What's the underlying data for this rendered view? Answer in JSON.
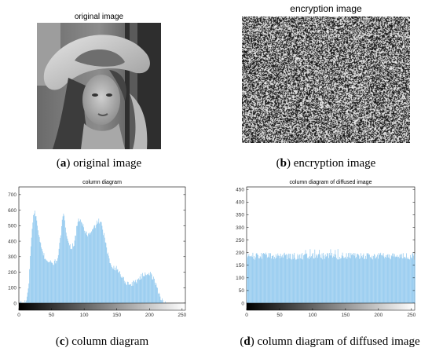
{
  "panels": {
    "a": {
      "title": "original image",
      "caption_letter": "a",
      "caption_text": "original image"
    },
    "b": {
      "title": "encryption image",
      "caption_letter": "b",
      "caption_text": "encryption image"
    },
    "c": {
      "caption_letter": "c",
      "caption_text": "column diagram"
    },
    "d": {
      "caption_letter": "d",
      "caption_text": "column diagram of diffused image"
    }
  },
  "colors": {
    "bar": "#8ec7ee",
    "axis": "#000000",
    "background": "#ffffff"
  },
  "chart_data": [
    {
      "id": "c",
      "type": "bar",
      "title": "column diagram",
      "xlabel": "",
      "ylabel": "",
      "xlim": [
        0,
        255
      ],
      "ylim": [
        0,
        750
      ],
      "xticks": [
        0,
        50,
        100,
        150,
        200,
        250
      ],
      "yticks": [
        0,
        100,
        200,
        300,
        400,
        500,
        600,
        700
      ],
      "grid": false,
      "colorbar": "grayscale",
      "keypoints": [
        [
          0,
          0
        ],
        [
          8,
          2
        ],
        [
          12,
          30
        ],
        [
          15,
          130
        ],
        [
          18,
          380
        ],
        [
          21,
          520
        ],
        [
          23,
          590
        ],
        [
          26,
          560
        ],
        [
          30,
          430
        ],
        [
          35,
          340
        ],
        [
          40,
          290
        ],
        [
          45,
          270
        ],
        [
          50,
          255
        ],
        [
          55,
          265
        ],
        [
          60,
          300
        ],
        [
          63,
          410
        ],
        [
          66,
          530
        ],
        [
          69,
          575
        ],
        [
          72,
          470
        ],
        [
          76,
          380
        ],
        [
          80,
          360
        ],
        [
          85,
          390
        ],
        [
          88,
          480
        ],
        [
          92,
          545
        ],
        [
          96,
          520
        ],
        [
          100,
          470
        ],
        [
          105,
          440
        ],
        [
          110,
          450
        ],
        [
          114,
          480
        ],
        [
          118,
          510
        ],
        [
          122,
          535
        ],
        [
          126,
          505
        ],
        [
          130,
          440
        ],
        [
          134,
          350
        ],
        [
          138,
          275
        ],
        [
          142,
          245
        ],
        [
          146,
          230
        ],
        [
          150,
          220
        ],
        [
          155,
          190
        ],
        [
          160,
          155
        ],
        [
          165,
          130
        ],
        [
          170,
          122
        ],
        [
          175,
          130
        ],
        [
          180,
          145
        ],
        [
          185,
          165
        ],
        [
          190,
          180
        ],
        [
          195,
          195
        ],
        [
          200,
          192
        ],
        [
          205,
          165
        ],
        [
          210,
          115
        ],
        [
          214,
          65
        ],
        [
          218,
          25
        ],
        [
          222,
          5
        ],
        [
          225,
          0
        ],
        [
          255,
          0
        ]
      ],
      "noise": 18
    },
    {
      "id": "d",
      "type": "bar",
      "title": "column diagram of diffused image",
      "xlabel": "",
      "ylabel": "",
      "xlim": [
        0,
        255
      ],
      "ylim": [
        0,
        460
      ],
      "xticks": [
        0,
        50,
        100,
        150,
        200,
        250
      ],
      "yticks": [
        0,
        50,
        100,
        150,
        200,
        250,
        300,
        350,
        400,
        450
      ],
      "grid": false,
      "colorbar": "grayscale",
      "mean": 186,
      "noise": 14,
      "max": 215
    }
  ]
}
